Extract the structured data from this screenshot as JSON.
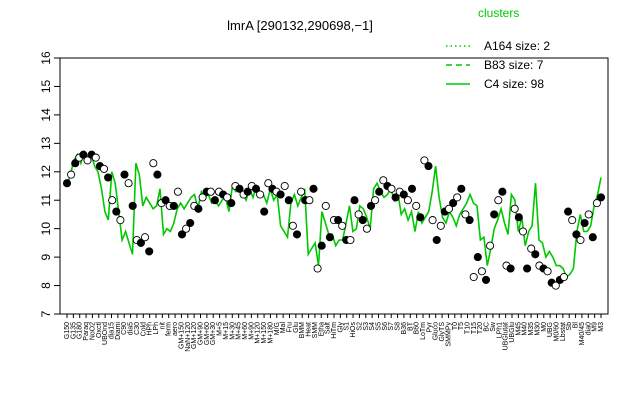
{
  "chart_data": {
    "type": "line",
    "title": "lmrA [290132,290698,−1]",
    "xlabel": "",
    "ylabel": "",
    "ylim": [
      7,
      16
    ],
    "yticks": [
      7,
      8,
      9,
      10,
      11,
      12,
      13,
      14,
      15,
      16
    ],
    "grid": false,
    "legend": {
      "title": "clusters",
      "placement": "top-right",
      "entries": [
        {
          "label": "A164 size: 2",
          "style": "dotted"
        },
        {
          "label": "B83 size: 7",
          "style": "dashed"
        },
        {
          "label": "C4 size: 98",
          "style": "solid"
        }
      ]
    },
    "colors": {
      "lines": "#00c800",
      "points": "#000000"
    },
    "xtick_labels": [
      "G150",
      "G135",
      "G180",
      "Paraq",
      "NoO2",
      "Oxctl",
      "UBOnd",
      "dia15",
      "Diami",
      "C90",
      "dia5",
      "C30",
      "Cold",
      "HPh",
      "LPh",
      "nit",
      "ferm",
      "aero",
      "GM+150",
      "NaN+120",
      "GM+120",
      "GM+90",
      "GM+60",
      "GM+30",
      "M+5",
      "M+15",
      "M+30",
      "M+45",
      "M+60",
      "M+90",
      "M+120",
      "M+150",
      "M+180",
      "M/G",
      "Mal",
      "Fru",
      "Glu",
      "BMM",
      "Heat",
      "SMM",
      "Etha",
      "Salt",
      "HiTm",
      "Gly",
      "S1",
      "HiOs",
      "S2",
      "S3",
      "S4",
      "S5",
      "S6",
      "S7",
      "S8",
      "B36",
      "BT",
      "B60",
      "LoTm",
      "Pyr",
      "Gluco",
      "GlyTS",
      "SMMPy",
      "T0",
      "T5",
      "T10",
      "T15",
      "T20",
      "BC",
      "Sw",
      "LPh1",
      "UBGlutat",
      "UBGlu",
      "M45",
      "M40",
      "M35",
      "M30",
      "M0",
      "UBG",
      "M0/60",
      "Lbstat",
      "Sb",
      "Bl",
      "M40/45",
      "dia0",
      "M9",
      "M3"
    ],
    "series": [
      {
        "name": "",
        "points": [
          {
            "x": 1,
            "y": 11.5
          },
          {
            "x": 2,
            "y": 11.9
          },
          {
            "x": 3,
            "y": 12.4
          },
          {
            "x": 4,
            "y": 12.6
          },
          {
            "x": 5,
            "y": 12.3
          },
          {
            "x": 6,
            "y": 12.7
          },
          {
            "x": 7,
            "y": 12.5
          },
          {
            "x": 8,
            "y": 12.6
          },
          {
            "x": 9,
            "y": 12.2
          },
          {
            "x": 10,
            "y": 12.0
          },
          {
            "x": 11,
            "y": 11.4
          },
          {
            "x": 12,
            "y": 10.6
          },
          {
            "x": 13,
            "y": 10.3
          },
          {
            "x": 14,
            "y": 12.0
          },
          {
            "x": 15,
            "y": 11.6
          },
          {
            "x": 16,
            "y": 10.6
          },
          {
            "x": 17,
            "y": 9.6
          },
          {
            "x": 18,
            "y": 9.9
          },
          {
            "x": 19,
            "y": 9.5
          },
          {
            "x": 20,
            "y": 9.1
          },
          {
            "x": 21,
            "y": 12.3
          },
          {
            "x": 22,
            "y": 11.9
          },
          {
            "x": 23,
            "y": 10.8
          },
          {
            "x": 24,
            "y": 11.1
          },
          {
            "x": 25,
            "y": 10.9
          },
          {
            "x": 26,
            "y": 10.7
          },
          {
            "x": 27,
            "y": 10.8
          },
          {
            "x": 28,
            "y": 11.4
          },
          {
            "x": 29,
            "y": 9.8
          },
          {
            "x": 30,
            "y": 10.0
          },
          {
            "x": 31,
            "y": 9.9
          },
          {
            "x": 32,
            "y": 10.2
          },
          {
            "x": 33,
            "y": 10.7
          },
          {
            "x": 34,
            "y": 10.9
          },
          {
            "x": 35,
            "y": 10.7
          },
          {
            "x": 36,
            "y": 10.9
          },
          {
            "x": 37,
            "y": 11.1
          },
          {
            "x": 38,
            "y": 11.2
          },
          {
            "x": 39,
            "y": 10.7
          },
          {
            "x": 40,
            "y": 11.3
          },
          {
            "x": 41,
            "y": 11.1
          },
          {
            "x": 42,
            "y": 11.2
          },
          {
            "x": 43,
            "y": 10.9
          },
          {
            "x": 44,
            "y": 11.0
          },
          {
            "x": 45,
            "y": 10.8
          },
          {
            "x": 46,
            "y": 11.0
          },
          {
            "x": 47,
            "y": 11.1
          },
          {
            "x": 48,
            "y": 10.6
          },
          {
            "x": 49,
            "y": 11.5
          },
          {
            "x": 50,
            "y": 11.3
          },
          {
            "x": 51,
            "y": 11.4
          },
          {
            "x": 52,
            "y": 11.2
          },
          {
            "x": 53,
            "y": 11.0
          },
          {
            "x": 54,
            "y": 11.4
          },
          {
            "x": 55,
            "y": 11.1
          },
          {
            "x": 56,
            "y": 11.5
          },
          {
            "x": 57,
            "y": 11.3
          },
          {
            "x": 58,
            "y": 11.2
          },
          {
            "x": 59,
            "y": 10.9
          },
          {
            "x": 60,
            "y": 11.4
          },
          {
            "x": 61,
            "y": 11.0
          },
          {
            "x": 62,
            "y": 11.2
          },
          {
            "x": 63,
            "y": 10.1
          },
          {
            "x": 64,
            "y": 9.9
          },
          {
            "x": 65,
            "y": 9.7
          },
          {
            "x": 66,
            "y": 10.9
          },
          {
            "x": 67,
            "y": 11.2
          },
          {
            "x": 68,
            "y": 10.8
          },
          {
            "x": 69,
            "y": 11.1
          },
          {
            "x": 70,
            "y": 11.4
          },
          {
            "x": 71,
            "y": 9.1
          },
          {
            "x": 72,
            "y": 9.3
          },
          {
            "x": 73,
            "y": 9.5
          },
          {
            "x": 74,
            "y": 8.7
          },
          {
            "x": 75,
            "y": 10.6
          },
          {
            "x": 76,
            "y": 10.2
          },
          {
            "x": 77,
            "y": 9.8
          },
          {
            "x": 78,
            "y": 9.8
          },
          {
            "x": 79,
            "y": 9.4
          },
          {
            "x": 80,
            "y": 9.6
          },
          {
            "x": 81,
            "y": 9.6
          },
          {
            "x": 82,
            "y": 10.2
          },
          {
            "x": 83,
            "y": 10.8
          },
          {
            "x": 84,
            "y": 9.9
          },
          {
            "x": 85,
            "y": 10.0
          },
          {
            "x": 86,
            "y": 10.8
          },
          {
            "x": 87,
            "y": 10.7
          },
          {
            "x": 88,
            "y": 10.4
          },
          {
            "x": 89,
            "y": 10.0
          },
          {
            "x": 90,
            "y": 11.4
          },
          {
            "x": 91,
            "y": 11.6
          },
          {
            "x": 92,
            "y": 11.3
          },
          {
            "x": 93,
            "y": 11.1
          },
          {
            "x": 94,
            "y": 11.2
          },
          {
            "x": 95,
            "y": 11.4
          },
          {
            "x": 96,
            "y": 11.0
          },
          {
            "x": 97,
            "y": 11.3
          },
          {
            "x": 98,
            "y": 10.5
          },
          {
            "x": 99,
            "y": 10.7
          },
          {
            "x": 100,
            "y": 10.3
          },
          {
            "x": 101,
            "y": 10.6
          },
          {
            "x": 102,
            "y": 9.9
          },
          {
            "x": 103,
            "y": 10.6
          },
          {
            "x": 104,
            "y": 10.2
          },
          {
            "x": 105,
            "y": 10.4
          },
          {
            "x": 106,
            "y": 10.6
          },
          {
            "x": 107,
            "y": 11.3
          },
          {
            "x": 108,
            "y": 12.2
          },
          {
            "x": 109,
            "y": 11.1
          },
          {
            "x": 110,
            "y": 10.4
          },
          {
            "x": 111,
            "y": 10.2
          },
          {
            "x": 112,
            "y": 10.6
          },
          {
            "x": 113,
            "y": 10.4
          },
          {
            "x": 114,
            "y": 10.1
          },
          {
            "x": 115,
            "y": 10.5
          },
          {
            "x": 116,
            "y": 10.7
          },
          {
            "x": 117,
            "y": 10.9
          },
          {
            "x": 118,
            "y": 11.2
          },
          {
            "x": 119,
            "y": 10.9
          },
          {
            "x": 120,
            "y": 10.8
          },
          {
            "x": 121,
            "y": 9.6
          },
          {
            "x": 122,
            "y": 9.7
          },
          {
            "x": 123,
            "y": 8.7
          },
          {
            "x": 124,
            "y": 9.3
          },
          {
            "x": 125,
            "y": 10.0
          },
          {
            "x": 126,
            "y": 10.3
          },
          {
            "x": 127,
            "y": 10.7
          },
          {
            "x": 128,
            "y": 10.2
          },
          {
            "x": 129,
            "y": 9.8
          },
          {
            "x": 130,
            "y": 11.2
          },
          {
            "x": 131,
            "y": 11.0
          },
          {
            "x": 132,
            "y": 9.9
          },
          {
            "x": 133,
            "y": 10.4
          },
          {
            "x": 134,
            "y": 9.4
          },
          {
            "x": 135,
            "y": 9.9
          },
          {
            "x": 136,
            "y": 10.1
          },
          {
            "x": 137,
            "y": 11.6
          },
          {
            "x": 138,
            "y": 9.6
          },
          {
            "x": 139,
            "y": 9.5
          },
          {
            "x": 140,
            "y": 9.0
          },
          {
            "x": 141,
            "y": 9.2
          },
          {
            "x": 142,
            "y": 9.0
          },
          {
            "x": 143,
            "y": 8.7
          },
          {
            "x": 144,
            "y": 8.7
          },
          {
            "x": 145,
            "y": 8.6
          },
          {
            "x": 146,
            "y": 8.3
          },
          {
            "x": 147,
            "y": 8.4
          },
          {
            "x": 148,
            "y": 8.6
          },
          {
            "x": 149,
            "y": 9.9
          },
          {
            "x": 150,
            "y": 10.5
          },
          {
            "x": 151,
            "y": 9.9
          },
          {
            "x": 152,
            "y": 9.9
          },
          {
            "x": 153,
            "y": 10.1
          },
          {
            "x": 154,
            "y": 10.8
          },
          {
            "x": 155,
            "y": 11.2
          },
          {
            "x": 156,
            "y": 11.8
          }
        ]
      }
    ],
    "points": [
      [
        1,
        11.6
      ],
      [
        2,
        11.9
      ],
      [
        3,
        12.3
      ],
      [
        4,
        12.5
      ],
      [
        5,
        12.6
      ],
      [
        6,
        12.4
      ],
      [
        7,
        12.6
      ],
      [
        8,
        12.5
      ],
      [
        9,
        12.2
      ],
      [
        10,
        12.1
      ],
      [
        11,
        11.8
      ],
      [
        12,
        11.0
      ],
      [
        13,
        10.6
      ],
      [
        14,
        10.3
      ],
      [
        15,
        11.9
      ],
      [
        16,
        11.6
      ],
      [
        17,
        10.8
      ],
      [
        18,
        9.6
      ],
      [
        19,
        9.5
      ],
      [
        20,
        9.7
      ],
      [
        21,
        9.2
      ],
      [
        22,
        12.3
      ],
      [
        23,
        11.9
      ],
      [
        24,
        10.9
      ],
      [
        25,
        11.0
      ],
      [
        26,
        10.8
      ],
      [
        27,
        10.8
      ],
      [
        28,
        11.3
      ],
      [
        29,
        9.8
      ],
      [
        30,
        10.0
      ],
      [
        31,
        10.2
      ],
      [
        32,
        10.8
      ],
      [
        33,
        10.7
      ],
      [
        34,
        11.1
      ],
      [
        35,
        11.3
      ],
      [
        36,
        11.3
      ],
      [
        37,
        11.0
      ],
      [
        38,
        11.3
      ],
      [
        39,
        11.2
      ],
      [
        40,
        11.1
      ],
      [
        41,
        10.9
      ],
      [
        42,
        11.5
      ],
      [
        43,
        11.4
      ],
      [
        44,
        11.2
      ],
      [
        45,
        11.3
      ],
      [
        46,
        11.5
      ],
      [
        47,
        11.4
      ],
      [
        48,
        11.2
      ],
      [
        49,
        10.6
      ],
      [
        50,
        11.6
      ],
      [
        51,
        11.4
      ],
      [
        52,
        11.3
      ],
      [
        53,
        11.2
      ],
      [
        54,
        11.5
      ],
      [
        55,
        11.0
      ],
      [
        56,
        10.1
      ],
      [
        57,
        9.8
      ],
      [
        58,
        11.3
      ],
      [
        59,
        11.0
      ],
      [
        60,
        11.0
      ],
      [
        61,
        11.4
      ],
      [
        62,
        8.6
      ],
      [
        63,
        9.4
      ],
      [
        64,
        10.8
      ],
      [
        65,
        9.7
      ],
      [
        66,
        10.3
      ],
      [
        67,
        10.3
      ],
      [
        68,
        10.1
      ],
      [
        69,
        9.6
      ],
      [
        70,
        9.6
      ],
      [
        71,
        11.0
      ],
      [
        72,
        10.5
      ],
      [
        73,
        10.3
      ],
      [
        74,
        10.0
      ],
      [
        75,
        10.8
      ],
      [
        76,
        11.0
      ],
      [
        77,
        11.3
      ],
      [
        78,
        11.7
      ],
      [
        79,
        11.5
      ],
      [
        80,
        11.4
      ],
      [
        81,
        11.1
      ],
      [
        82,
        11.3
      ],
      [
        83,
        11.2
      ],
      [
        84,
        11.0
      ],
      [
        85,
        11.4
      ],
      [
        86,
        10.8
      ],
      [
        87,
        10.4
      ],
      [
        88,
        12.4
      ],
      [
        89,
        12.2
      ],
      [
        90,
        10.3
      ],
      [
        91,
        9.6
      ],
      [
        92,
        10.1
      ],
      [
        93,
        10.6
      ],
      [
        94,
        10.7
      ],
      [
        95,
        10.9
      ],
      [
        96,
        11.1
      ],
      [
        97,
        11.4
      ],
      [
        98,
        10.5
      ],
      [
        99,
        10.3
      ],
      [
        100,
        8.3
      ],
      [
        101,
        9.0
      ],
      [
        102,
        8.5
      ],
      [
        103,
        8.2
      ],
      [
        104,
        9.4
      ],
      [
        105,
        10.5
      ],
      [
        106,
        11.0
      ],
      [
        107,
        11.3
      ],
      [
        108,
        8.7
      ],
      [
        109,
        8.6
      ],
      [
        110,
        10.7
      ],
      [
        111,
        10.4
      ],
      [
        112,
        9.9
      ],
      [
        113,
        8.6
      ],
      [
        114,
        9.3
      ],
      [
        115,
        9.1
      ],
      [
        116,
        8.7
      ],
      [
        117,
        8.6
      ],
      [
        118,
        8.5
      ],
      [
        119,
        8.1
      ],
      [
        120,
        8.0
      ],
      [
        121,
        8.2
      ],
      [
        122,
        8.3
      ],
      [
        123,
        10.6
      ],
      [
        124,
        10.3
      ],
      [
        125,
        9.8
      ],
      [
        126,
        9.6
      ],
      [
        127,
        10.2
      ],
      [
        128,
        10.5
      ],
      [
        129,
        9.7
      ],
      [
        130,
        10.9
      ],
      [
        131,
        11.1
      ]
    ]
  }
}
